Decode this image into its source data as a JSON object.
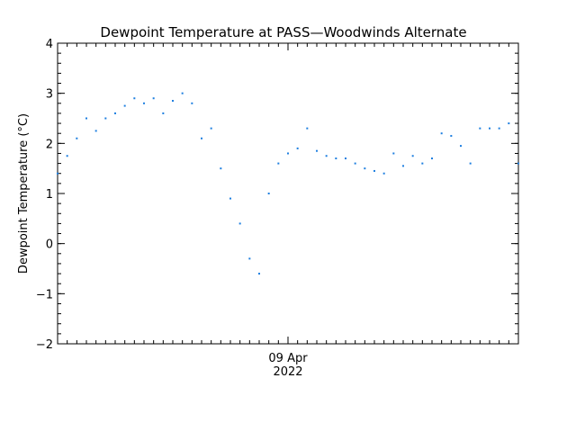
{
  "chart_data": {
    "type": "scatter",
    "title": "Dewpoint Temperature at PASS—Woodwinds Alternate",
    "xlabel": "",
    "ylabel": "Dewpoint Temperature (°C)",
    "ylim": [
      -2,
      4
    ],
    "yticks": [
      -2,
      -1,
      0,
      1,
      2,
      3,
      4
    ],
    "ytick_labels": [
      "−2",
      "−1",
      "0",
      "1",
      "2",
      "3",
      "4"
    ],
    "xlim": [
      "2022-04-08 00:00",
      "2022-04-10 00:00"
    ],
    "x_tick": {
      "date": "2022-04-09 00:00",
      "label_line1": "09 Apr",
      "label_line2": "2022"
    },
    "grid": false,
    "marker_color": "#1e7fe0",
    "series": [
      {
        "x": [
          "2022-04-08 00:00",
          "2022-04-08 01:00",
          "2022-04-08 02:00",
          "2022-04-08 03:00",
          "2022-04-08 04:00",
          "2022-04-08 05:00",
          "2022-04-08 06:00",
          "2022-04-08 07:00",
          "2022-04-08 08:00",
          "2022-04-08 09:00",
          "2022-04-08 10:00",
          "2022-04-08 11:00",
          "2022-04-08 12:00",
          "2022-04-08 13:00",
          "2022-04-08 14:00",
          "2022-04-08 15:00",
          "2022-04-08 16:00",
          "2022-04-08 17:00",
          "2022-04-08 18:00",
          "2022-04-08 19:00",
          "2022-04-08 20:00",
          "2022-04-08 21:00",
          "2022-04-08 22:00",
          "2022-04-08 23:00",
          "2022-04-09 00:00",
          "2022-04-09 01:00",
          "2022-04-09 02:00",
          "2022-04-09 03:00",
          "2022-04-09 04:00",
          "2022-04-09 05:00",
          "2022-04-09 06:00",
          "2022-04-09 07:00",
          "2022-04-09 08:00",
          "2022-04-09 09:00",
          "2022-04-09 10:00",
          "2022-04-09 11:00",
          "2022-04-09 12:00",
          "2022-04-09 13:00",
          "2022-04-09 14:00",
          "2022-04-09 15:00",
          "2022-04-09 16:00",
          "2022-04-09 17:00",
          "2022-04-09 18:00",
          "2022-04-09 19:00",
          "2022-04-09 20:00",
          "2022-04-09 21:00",
          "2022-04-09 22:00",
          "2022-04-09 23:00",
          "2022-04-10 00:00"
        ],
        "y": [
          1.4,
          1.75,
          2.1,
          2.5,
          2.25,
          2.5,
          2.6,
          2.75,
          2.9,
          2.8,
          2.9,
          2.6,
          2.85,
          3.0,
          2.8,
          2.1,
          2.3,
          1.5,
          0.9,
          0.4,
          -0.3,
          -0.6,
          1.0,
          1.6,
          1.8,
          1.9,
          2.3,
          1.85,
          1.75,
          1.7,
          1.7,
          1.6,
          1.5,
          1.45,
          1.4,
          1.8,
          1.55,
          1.75,
          1.6,
          1.7,
          2.2,
          2.15,
          1.95,
          1.6,
          2.3,
          2.3,
          2.3,
          2.4,
          1.6
        ]
      }
    ]
  }
}
